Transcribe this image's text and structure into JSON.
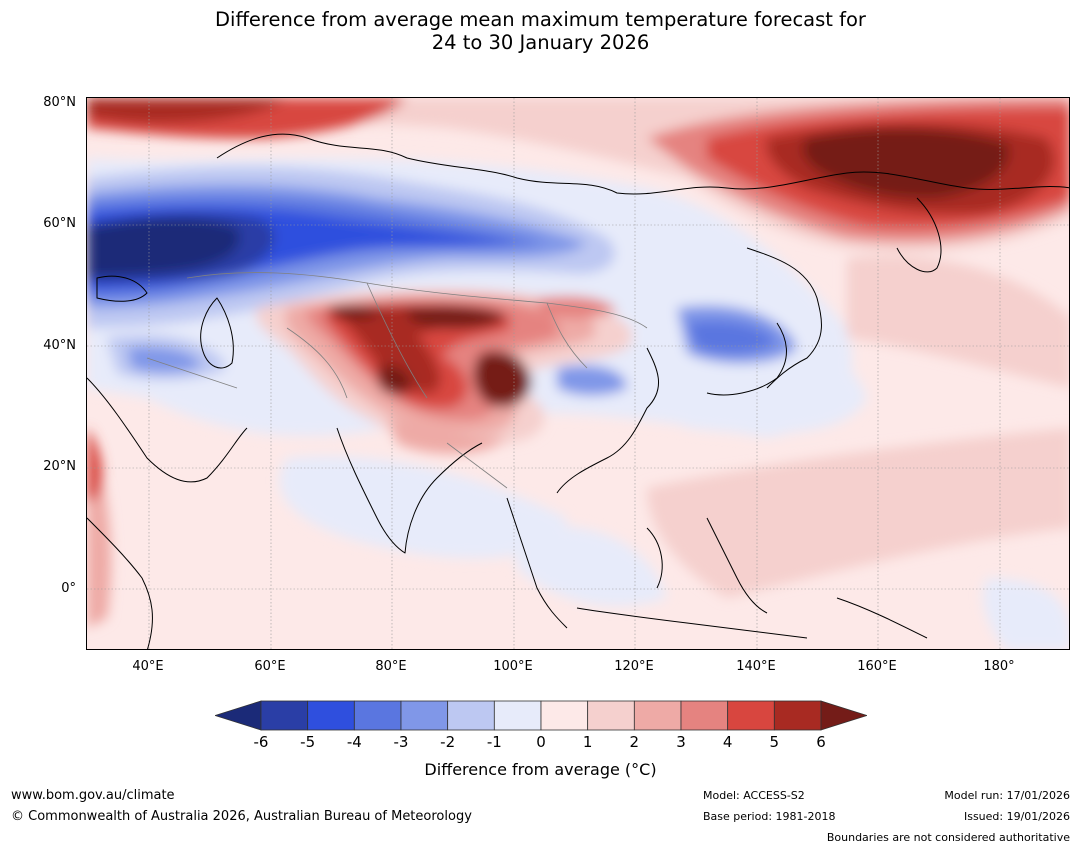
{
  "title": {
    "line1": "Difference from average mean maximum temperature forecast for",
    "line2": "24 to 30 January 2026"
  },
  "map": {
    "region": "Asia",
    "lat_labels": [
      "80°N",
      "60°N",
      "40°N",
      "20°N",
      "0°"
    ],
    "lon_labels": [
      "40°E",
      "60°E",
      "80°E",
      "100°E",
      "120°E",
      "140°E",
      "160°E",
      "180°"
    ],
    "lat_range": [
      -10,
      80
    ],
    "lon_range": [
      30,
      191
    ],
    "anomaly_highlights": [
      {
        "region": "Western Russia / Kazakhstan",
        "anomaly": "-6"
      },
      {
        "region": "Central Siberia",
        "anomaly": "-4"
      },
      {
        "region": "Tibetan Plateau",
        "anomaly": "+6"
      },
      {
        "region": "Xinjiang / Mongolia",
        "anomaly": "+6"
      },
      {
        "region": "Eastern Siberia",
        "anomaly": "+6"
      },
      {
        "region": "Korea / Japan",
        "anomaly": "-3"
      }
    ]
  },
  "colorbar": {
    "ticks": [
      "-6",
      "-5",
      "-4",
      "-3",
      "-2",
      "-1",
      "0",
      "1",
      "2",
      "3",
      "4",
      "5",
      "6"
    ],
    "colors": [
      "#2a3ea6",
      "#2f4fde",
      "#5a76e0",
      "#8097e8",
      "#bdc8f2",
      "#e7ebfa",
      "#fde9e8",
      "#f5d0ce",
      "#eeaaa6",
      "#e58380",
      "#d8463f",
      "#a82a22"
    ],
    "low_extend_color": "#1b2a78",
    "high_extend_color": "#741c18",
    "label": "Difference from average (°C)"
  },
  "footer": {
    "website": "www.bom.gov.au/climate",
    "copyright": "© Commonwealth of Australia 2026, Australian Bureau of Meteorology",
    "model": "Model: ACCESS-S2",
    "base_period": "Base period: 1981-2018",
    "model_run": "Model run: 17/01/2026",
    "issued": "Issued: 19/01/2026",
    "boundaries_note": "Boundaries are not considered authoritative"
  }
}
